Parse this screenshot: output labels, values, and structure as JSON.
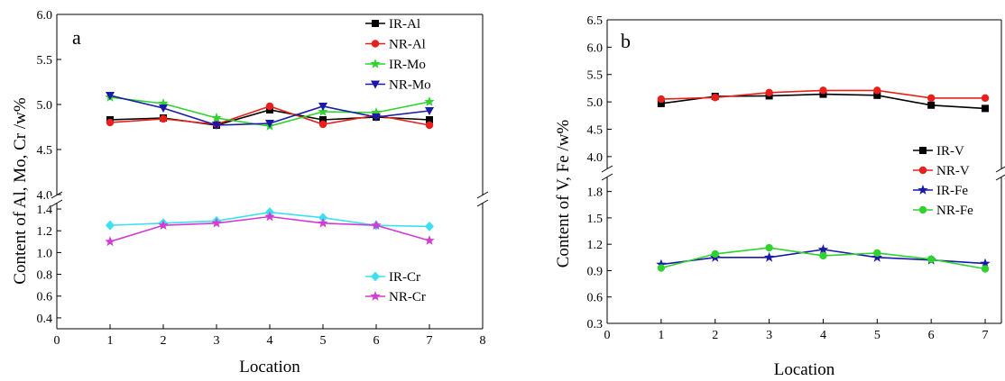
{
  "chart_data": [
    {
      "type": "line",
      "panel_label": "a",
      "xlabel": "Location",
      "ylabel": "Content of Al, Mo, Cr /w%",
      "x_ticks": [
        "0",
        "1",
        "2",
        "3",
        "4",
        "5",
        "6",
        "7",
        "8"
      ],
      "xlim": [
        0,
        8
      ],
      "x": [
        1,
        2,
        3,
        4,
        5,
        6,
        7
      ],
      "broken_y_axis": true,
      "upper_segment": {
        "ylim": [
          4.0,
          6.0
        ],
        "y_ticks": [
          "4.0",
          "4.5",
          "5.0",
          "5.5",
          "6.0"
        ],
        "series": [
          {
            "name": "IR-Al",
            "color": "#000000",
            "marker": "square",
            "values": [
              4.83,
              4.85,
              4.77,
              4.94,
              4.83,
              4.86,
              4.83
            ]
          },
          {
            "name": "NR-Al",
            "color": "#e8201c",
            "marker": "circle",
            "values": [
              4.8,
              4.84,
              4.78,
              4.98,
              4.78,
              4.88,
              4.77
            ]
          },
          {
            "name": "IR-Mo",
            "color": "#2fd22f",
            "marker": "star",
            "values": [
              5.08,
              5.01,
              4.85,
              4.76,
              4.92,
              4.91,
              5.03
            ]
          },
          {
            "name": "NR-Mo",
            "color": "#1a1aa8",
            "marker": "triangle-down",
            "values": [
              5.1,
              4.96,
              4.77,
              4.79,
              4.98,
              4.86,
              4.93
            ]
          }
        ]
      },
      "lower_segment": {
        "ylim": [
          0.3,
          1.45
        ],
        "y_ticks": [
          "0.4",
          "0.6",
          "0.8",
          "1.0",
          "1.2",
          "1.4"
        ],
        "series": [
          {
            "name": "IR-Cr",
            "color": "#3ce0f0",
            "marker": "diamond",
            "values": [
              1.25,
              1.27,
              1.29,
              1.37,
              1.32,
              1.25,
              1.24
            ]
          },
          {
            "name": "NR-Cr",
            "color": "#d23cd2",
            "marker": "star",
            "values": [
              1.1,
              1.25,
              1.27,
              1.33,
              1.27,
              1.25,
              1.11
            ]
          }
        ]
      }
    },
    {
      "type": "line",
      "panel_label": "b",
      "xlabel": "Location",
      "ylabel": "Content of V, Fe /w%",
      "x_ticks": [
        "0",
        "1",
        "2",
        "3",
        "4",
        "5",
        "6",
        "7"
      ],
      "xlim": [
        0,
        7.3
      ],
      "x": [
        1,
        2,
        3,
        4,
        5,
        6,
        7
      ],
      "broken_y_axis": true,
      "upper_segment": {
        "ylim": [
          3.8,
          6.5
        ],
        "y_ticks": [
          "4.0",
          "4.5",
          "5.0",
          "5.5",
          "6.0",
          "6.5"
        ],
        "series": [
          {
            "name": "IR-V",
            "color": "#000000",
            "marker": "square",
            "values": [
              4.97,
              5.1,
              5.11,
              5.14,
              5.12,
              4.94,
              4.88
            ]
          },
          {
            "name": "NR-V",
            "color": "#e8201c",
            "marker": "circle",
            "values": [
              5.05,
              5.08,
              5.17,
              5.21,
              5.21,
              5.07,
              5.07
            ]
          }
        ]
      },
      "lower_segment": {
        "ylim": [
          0.3,
          1.95
        ],
        "y_ticks": [
          "0.3",
          "0.6",
          "0.9",
          "1.2",
          "1.5",
          "1.8"
        ],
        "series": [
          {
            "name": "IR-Fe",
            "color": "#1a1aa8",
            "marker": "star",
            "values": [
              0.97,
              1.05,
              1.05,
              1.14,
              1.05,
              1.02,
              0.98
            ]
          },
          {
            "name": "NR-Fe",
            "color": "#2fd22f",
            "marker": "circle",
            "values": [
              0.93,
              1.09,
              1.16,
              1.07,
              1.1,
              1.03,
              0.92
            ]
          }
        ]
      }
    }
  ]
}
